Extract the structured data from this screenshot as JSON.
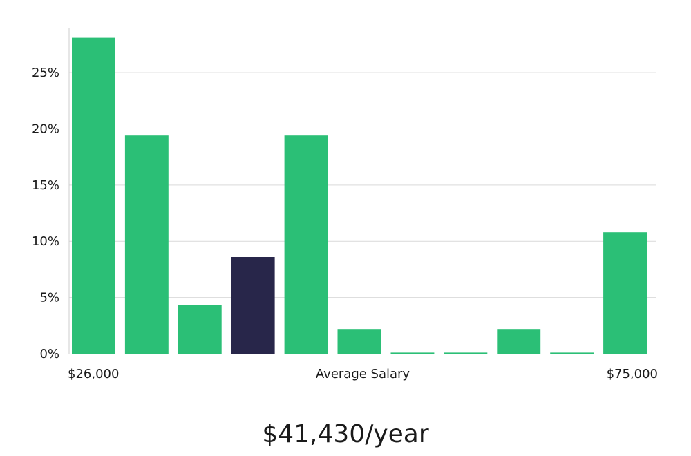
{
  "chart_data": {
    "type": "bar",
    "xlabel": "Average Salary",
    "x_range_labels": {
      "min": "$26,000",
      "max": "$75,000"
    },
    "ylabel": "",
    "ylim": [
      0,
      29
    ],
    "yticks": [
      0,
      5,
      10,
      15,
      20,
      25
    ],
    "ytick_labels": [
      "0%",
      "5%",
      "10%",
      "15%",
      "20%",
      "25%"
    ],
    "bin_count": 11,
    "values": [
      28.1,
      19.4,
      4.3,
      8.6,
      19.4,
      2.2,
      0.1,
      0.1,
      2.2,
      0.1,
      10.8
    ],
    "highlight_index": 3,
    "colors": {
      "bar": "#2bbf76",
      "highlight": "#28264a",
      "grid": "#d9d9d9"
    }
  },
  "summary": {
    "average_salary": "$41,430/year"
  }
}
